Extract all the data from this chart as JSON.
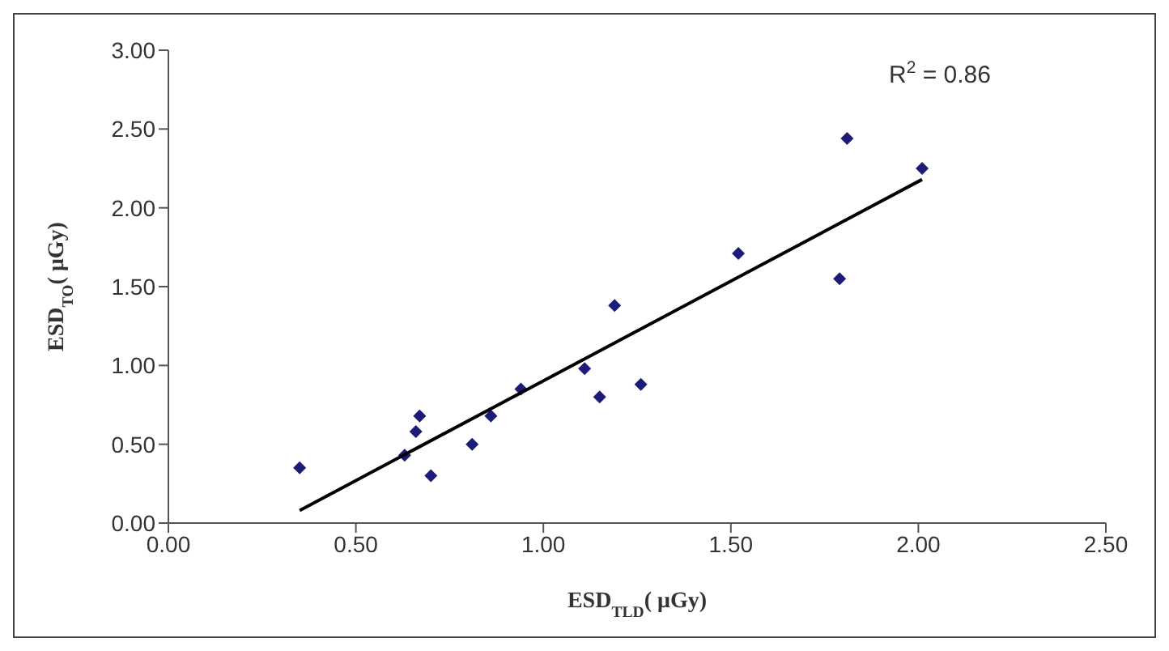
{
  "chart_data": {
    "type": "scatter",
    "xlabel": "ESD$_{TLD}$( μGy)",
    "ylabel": "ESD$_{TO}$( μGy)",
    "annotations": [
      "R$^{2}$ = 0.86"
    ],
    "x": [
      0.35,
      0.63,
      0.66,
      0.67,
      0.7,
      0.81,
      0.86,
      0.94,
      1.11,
      1.15,
      1.19,
      1.26,
      1.52,
      1.79,
      1.81,
      2.01
    ],
    "series": [
      {
        "color": "#1c1c78",
        "values": [
          0.35,
          0.43,
          0.58,
          0.68,
          0.3,
          0.5,
          0.68,
          0.85,
          0.98,
          0.8,
          1.38,
          0.88,
          1.71,
          1.55,
          2.44,
          2.25
        ]
      },
      {
        "type": "line",
        "color": "#000000",
        "x": [
          0.35,
          2.01
        ],
        "values": [
          0.08,
          2.18
        ],
        "marker": "none",
        "line_style": "solid"
      }
    ],
    "xlim": [
      0,
      2.5
    ],
    "ylim": [
      0,
      3
    ],
    "xticks": [
      {
        "value": 0,
        "label": "0.00"
      },
      {
        "value": 0.5,
        "label": "0.50"
      },
      {
        "value": 1,
        "label": "1.00"
      },
      {
        "value": 1.5,
        "label": "1.50"
      },
      {
        "value": 2,
        "label": "2.00"
      },
      {
        "value": 2.5,
        "label": "2.50"
      }
    ],
    "yticks": [
      {
        "value": 0,
        "label": "0.00"
      },
      {
        "value": 0.5,
        "label": "0.50"
      },
      {
        "value": 1,
        "label": "1.00"
      },
      {
        "value": 1.5,
        "label": "1.50"
      },
      {
        "value": 2,
        "label": "2.00"
      },
      {
        "value": 2.5,
        "label": "2.50"
      },
      {
        "value": 3,
        "label": "3.00"
      }
    ],
    "marker": "diamond",
    "grid": false,
    "legend": false
  }
}
